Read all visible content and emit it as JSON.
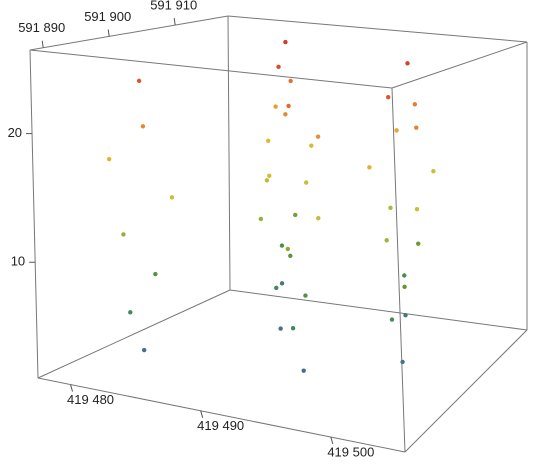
{
  "chart_data": {
    "type": "scatter3d",
    "x": [
      419483.2,
      419482.5,
      419484,
      419482,
      419485,
      419481.5,
      419484.5,
      419482.8,
      419489.3,
      419488.5,
      419490,
      419488,
      419491,
      419487.5,
      419490.5,
      419489,
      419494.5,
      419493.5,
      419495,
      419493,
      419496,
      419492.5,
      419495.5,
      419494,
      419498,
      419497.5,
      419499,
      419497,
      419500,
      419496.5,
      419499.5,
      419498,
      419501.5,
      419500.5,
      419502,
      419500,
      419503,
      419499.5,
      419502.5,
      419501,
      419486,
      419485.5,
      419487,
      419485,
      419488,
      419484.5,
      419487.5,
      419486
    ],
    "y": [
      591893.5,
      591892.8,
      591894,
      591893,
      591895,
      591892,
      591891.5,
      591894.5,
      591904.5,
      591905.5,
      591905,
      591904,
      591906,
      591906.5,
      591903.5,
      591905.5,
      591897,
      591897.5,
      591896.5,
      591898,
      591897,
      591896,
      591898.5,
      591896.5,
      591909.5,
      591910.5,
      591910,
      591909,
      591911,
      591911.5,
      591908.5,
      591910.5,
      591900,
      591900.5,
      591899.5,
      591901,
      591900,
      591899,
      591901.5,
      591899.5,
      591911.5,
      591912.5,
      591912,
      591911,
      591913,
      591913.5,
      591910.5,
      591912.5
    ],
    "z": [
      3,
      6,
      9,
      12,
      15,
      18,
      21,
      24,
      3,
      6,
      9,
      12,
      15,
      18,
      21,
      24.5,
      2.5,
      5.5,
      8.5,
      11.5,
      14.5,
      17.5,
      20.5,
      23,
      4,
      7,
      10,
      13,
      16,
      19,
      22,
      25,
      3.5,
      6.5,
      9.5,
      12.5,
      15.5,
      18.5,
      21.5,
      24,
      4.5,
      7.5,
      10.5,
      13.5,
      16.5,
      19.5,
      22.5,
      25.5
    ],
    "colormap": [
      "#4a5fa8",
      "#3f8466",
      "#5f9638",
      "#b6c43a",
      "#e6b530",
      "#e2782f",
      "#c9282a"
    ],
    "xlim": [
      419477.5,
      419505.7
    ],
    "ylim": [
      591888,
      591918
    ],
    "zlim": [
      1,
      26.5
    ],
    "xticks": [
      {
        "value": 419480,
        "label": "419 480"
      },
      {
        "value": 419490,
        "label": "419 490"
      },
      {
        "value": 419500,
        "label": "419 500"
      }
    ],
    "yticks": [
      {
        "value": 591890,
        "label": "591 890"
      },
      {
        "value": 591900,
        "label": "591 900"
      },
      {
        "value": 591910,
        "label": "591 910"
      }
    ],
    "zticks": [
      10,
      20
    ]
  }
}
